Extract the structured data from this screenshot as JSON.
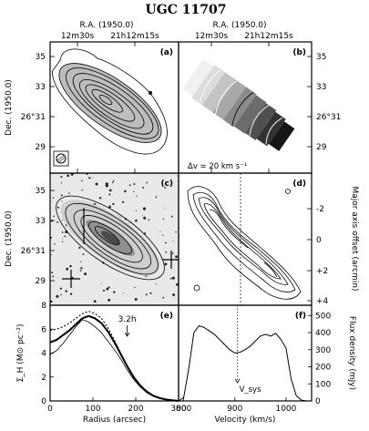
{
  "figure": {
    "title": "UGC 11707",
    "top_axis_label": "R.A. (1950.0)",
    "top_ticks": [
      "12m30s",
      "21h12m15s"
    ],
    "dec_label_left": "Dec. (1950.0)",
    "dec_ticks": [
      "35",
      "33",
      "26°31",
      "29"
    ]
  },
  "panels": {
    "a": {
      "tag": "(a)"
    },
    "b": {
      "tag": "(b)",
      "annotation": "Δv = 20 km s⁻¹"
    },
    "c": {
      "tag": "(c)"
    },
    "d": {
      "tag": "(d)",
      "ylabel": "Major axis offset (arcmin)",
      "yticks": [
        "-2",
        "0",
        "+2",
        "+4"
      ]
    },
    "e": {
      "tag": "(e)",
      "annotation": "3.2h"
    },
    "f": {
      "tag": "(f)",
      "annotation": "V_sys"
    }
  },
  "chart_data": [
    {
      "type": "line",
      "panel": "e",
      "xlabel": "Radius (arcsec)",
      "ylabel": "Σ_H (M⊙ pc⁻²)",
      "xlim": [
        0,
        300
      ],
      "ylim": [
        0,
        8
      ],
      "xticks": [
        0,
        100,
        200,
        300
      ],
      "yticks": [
        0,
        2,
        4,
        6,
        8
      ],
      "x": [
        0,
        15,
        30,
        45,
        60,
        75,
        90,
        105,
        120,
        135,
        150,
        165,
        180,
        195,
        210,
        225,
        240,
        255,
        270,
        285,
        300
      ],
      "series": [
        {
          "values": [
            4.9,
            5.1,
            5.5,
            5.9,
            6.4,
            6.9,
            7.1,
            6.9,
            6.5,
            5.8,
            4.9,
            3.9,
            2.9,
            2.0,
            1.3,
            0.8,
            0.45,
            0.25,
            0.12,
            0.05,
            0.0
          ]
        },
        {
          "values": [
            5.9,
            6.0,
            6.2,
            6.5,
            6.9,
            7.3,
            7.5,
            7.3,
            6.9,
            6.1,
            5.1,
            4.0,
            2.9,
            2.0,
            1.3,
            0.8,
            0.45,
            0.25,
            0.12,
            0.05,
            0.0
          ]
        },
        {
          "values": [
            3.9,
            4.2,
            4.8,
            5.5,
            6.2,
            6.8,
            6.6,
            6.2,
            5.7,
            5.0,
            4.3,
            3.5,
            2.6,
            1.8,
            1.2,
            0.7,
            0.4,
            0.2,
            0.1,
            0.04,
            0.0
          ]
        }
      ],
      "annotations": [
        {
          "text": "3.2h",
          "x": 180
        }
      ]
    },
    {
      "type": "line",
      "panel": "f",
      "xlabel": "Velocity (km/s)",
      "ylabel": "Flux density (mJy)",
      "xlim": [
        790,
        1050
      ],
      "ylim": [
        0,
        560
      ],
      "xticks": [
        800,
        900,
        1000
      ],
      "yticks": [
        0,
        100,
        200,
        300,
        400,
        500
      ],
      "x": [
        790,
        800,
        810,
        820,
        830,
        840,
        850,
        860,
        870,
        880,
        890,
        900,
        910,
        920,
        930,
        940,
        950,
        960,
        970,
        980,
        990,
        1000,
        1010,
        1020,
        1030,
        1040,
        1050
      ],
      "series": [
        {
          "values": [
            0,
            20,
            190,
            400,
            440,
            430,
            410,
            390,
            360,
            330,
            300,
            280,
            285,
            300,
            320,
            350,
            380,
            390,
            380,
            395,
            360,
            310,
            130,
            30,
            5,
            0,
            0
          ]
        }
      ],
      "annotations": [
        {
          "text": "V_sys",
          "x": 905
        }
      ]
    }
  ]
}
